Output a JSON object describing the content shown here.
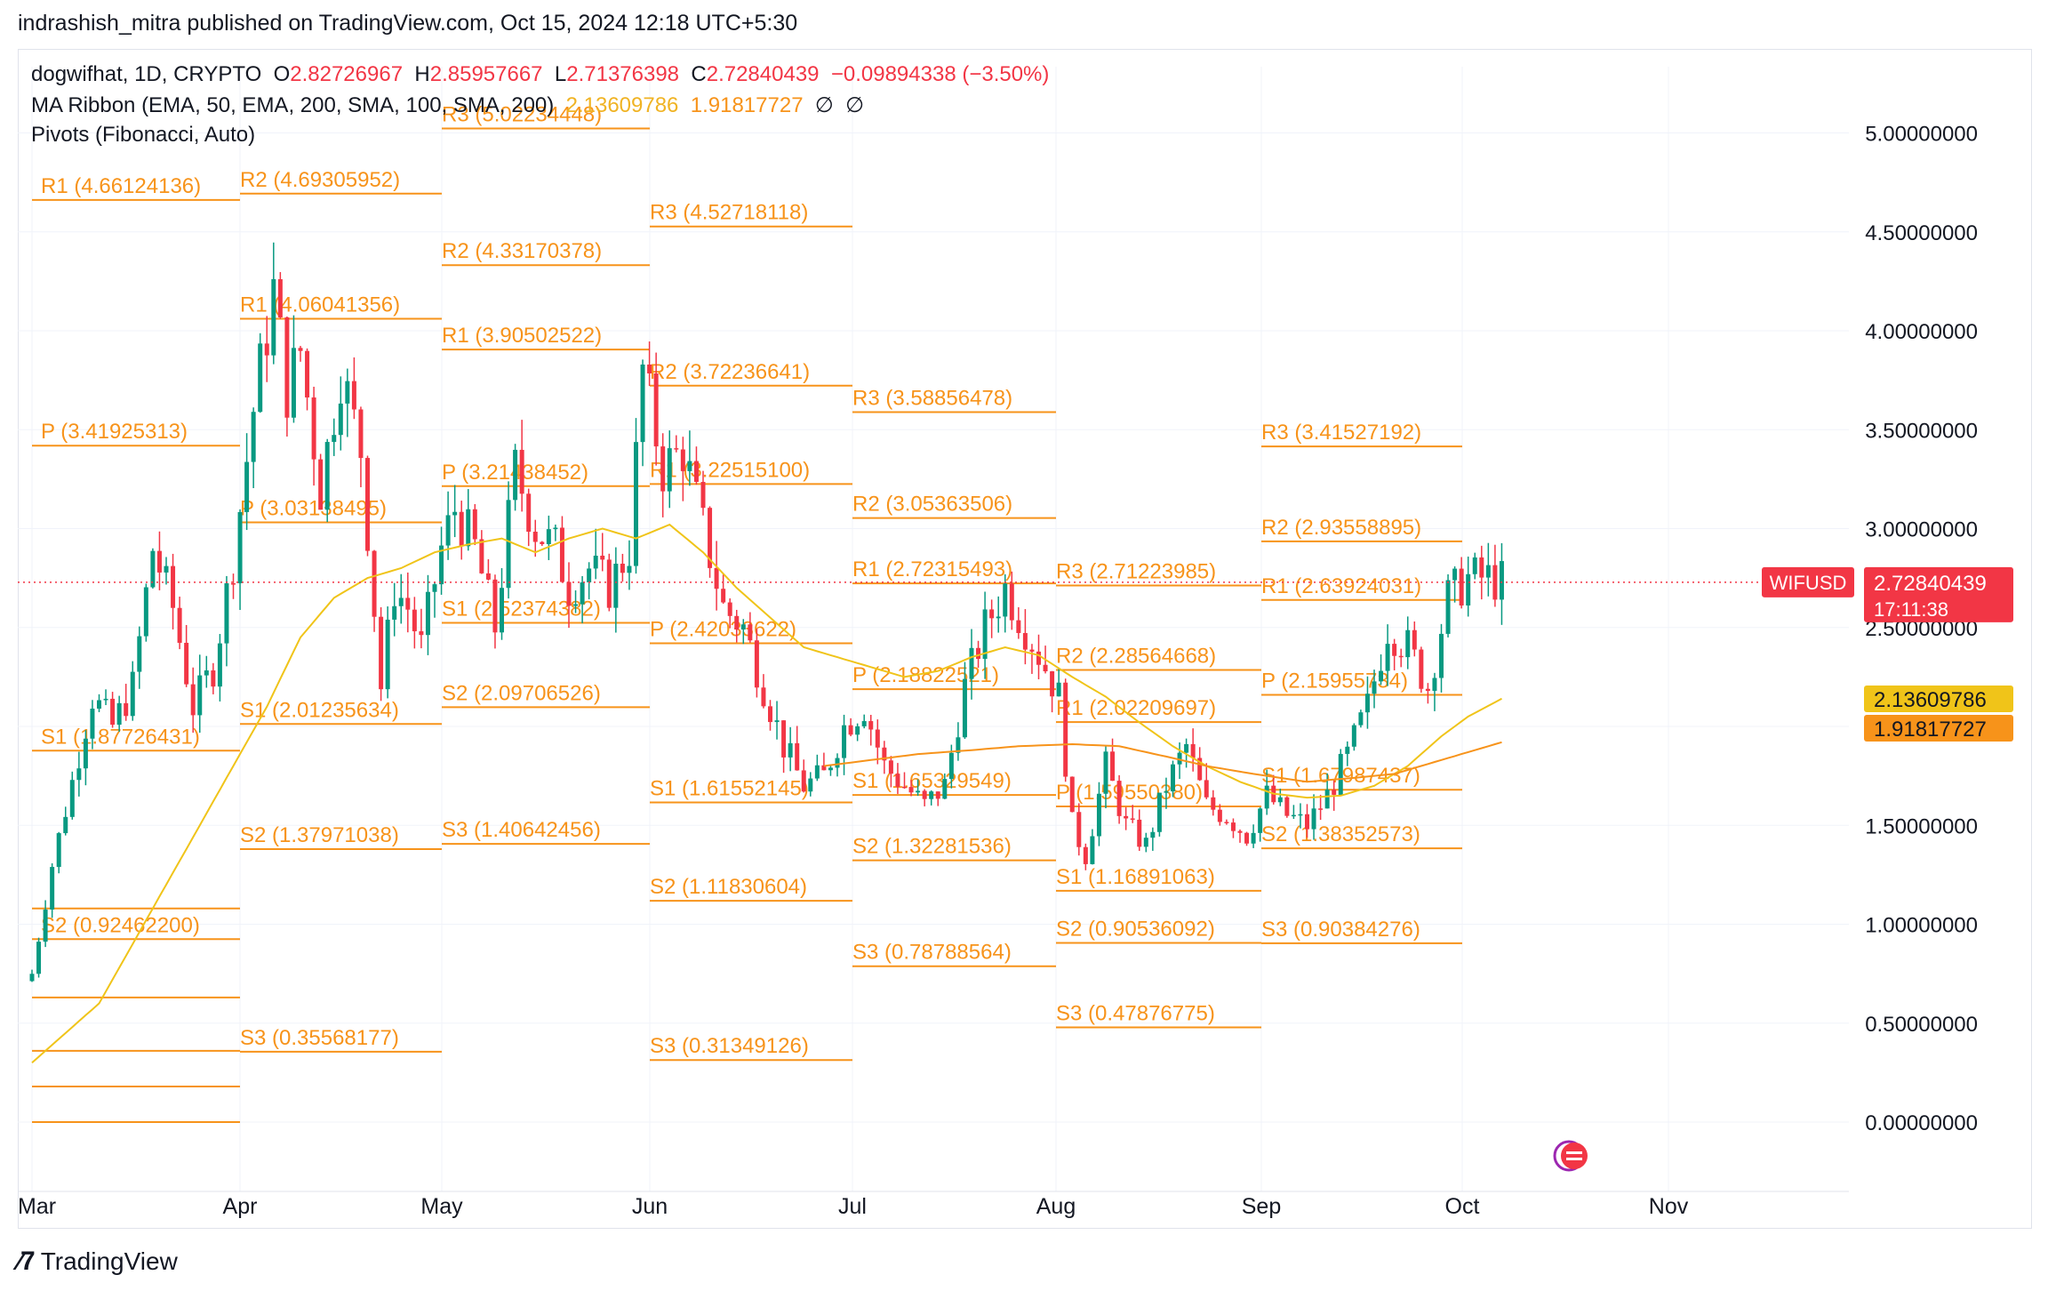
{
  "header": {
    "published": "indrashish_mitra published on TradingView.com, Oct 15, 2024 12:18 UTC+5:30"
  },
  "legend": {
    "symbol": "dogwifhat, 1D, CRYPTO",
    "o_label": "O",
    "o": "2.82726967",
    "h_label": "H",
    "h": "2.85957667",
    "l_label": "L",
    "l": "2.71376398",
    "c_label": "C",
    "c": "2.72840439",
    "change": "−0.09894338 (−3.50%)",
    "ma_label": "MA Ribbon (EMA, 50, EMA, 200, SMA, 100, SMA, 200)",
    "ma_v1": "2.13609786",
    "ma_v2": "1.91817727",
    "ma_v3": "∅",
    "ma_v4": "∅",
    "pivots_label": "Pivots (Fibonacci, Auto)"
  },
  "footer": {
    "brand": "TradingView"
  },
  "colors": {
    "up": "#089981",
    "down": "#f23645",
    "pivot": "#f7931a",
    "ma50": "#f0c419",
    "ma200": "#f7931a",
    "grid": "#f0f3fa"
  },
  "chart_data": {
    "type": "candlestick",
    "ylim": [
      -0.2,
      5.25
    ],
    "y_ticks": [
      "5.00000000",
      "4.50000000",
      "4.00000000",
      "3.50000000",
      "3.00000000",
      "2.50000000",
      "2.00000000",
      "1.50000000",
      "1.00000000",
      "0.50000000",
      "0.00000000"
    ],
    "y_tick_values": [
      5,
      4.5,
      4,
      3.5,
      3,
      2.5,
      2,
      1.5,
      1,
      0.5,
      0
    ],
    "x_ticks": [
      "Mar",
      "Apr",
      "May",
      "Jun",
      "Jul",
      "Aug",
      "Sep",
      "Oct",
      "Nov"
    ],
    "last_price": {
      "symbol": "WIFUSD",
      "value": 2.72840439,
      "label": "2.72840439",
      "countdown": "17:11:38"
    },
    "ma_tags": [
      {
        "value": 2.13609786,
        "label": "2.13609786",
        "color": "#f0c419"
      },
      {
        "value": 1.91817727,
        "label": "1.91817727",
        "color": "#f7931a"
      }
    ],
    "pivot_periods": [
      {
        "month": 0,
        "levels": [
          {
            "name": "R1",
            "label": "R1 (4.66124136)",
            "value": 4.66124136
          },
          {
            "name": "P",
            "label": "P (3.41925313)",
            "value": 3.41925313
          },
          {
            "name": "S1",
            "label": "S1 (1.87726431)",
            "value": 1.87726431
          },
          {
            "name": "S2",
            "label": "S2 (0.92462200)",
            "value": 0.924622
          }
        ]
      },
      {
        "month": 1,
        "levels": [
          {
            "name": "R2",
            "label": "R2 (4.69305952)",
            "value": 4.69305952
          },
          {
            "name": "R1",
            "label": "R1 (4.06041356)",
            "value": 4.06041356
          },
          {
            "name": "P",
            "label": "P (3.03138495)",
            "value": 3.03138495
          },
          {
            "name": "S1",
            "label": "S1 (2.01235634)",
            "value": 2.01235634
          },
          {
            "name": "S2",
            "label": "S2 (1.37971038)",
            "value": 1.37971038
          },
          {
            "name": "S3",
            "label": "S3 (0.35568177)",
            "value": 0.35568177
          }
        ]
      },
      {
        "month": 2,
        "levels": [
          {
            "name": "R3",
            "label": "R3 (5.02234448)",
            "value": 5.02234448
          },
          {
            "name": "R2",
            "label": "R2 (4.33170378)",
            "value": 4.33170378
          },
          {
            "name": "R1",
            "label": "R1 (3.90502522)",
            "value": 3.90502522
          },
          {
            "name": "P",
            "label": "P (3.21438452)",
            "value": 3.21438452
          },
          {
            "name": "S1",
            "label": "S1 (2.52374382)",
            "value": 2.52374382
          },
          {
            "name": "S2",
            "label": "S2 (2.09706526)",
            "value": 2.09706526
          },
          {
            "name": "S3",
            "label": "S3 (1.40642456)",
            "value": 1.40642456
          }
        ]
      },
      {
        "month": 3,
        "levels": [
          {
            "name": "R3",
            "label": "R3 (4.52718118)",
            "value": 4.52718118
          },
          {
            "name": "R2",
            "label": "R2 (3.72236641)",
            "value": 3.72236641
          },
          {
            "name": "R1",
            "label": "R1 (3.22515100)",
            "value": 3.225151
          },
          {
            "name": "P",
            "label": "P (2.42033622)",
            "value": 2.42033622
          },
          {
            "name": "S1",
            "label": "S1 (1.61552145)",
            "value": 1.61552145
          },
          {
            "name": "S2",
            "label": "S2 (1.11830604)",
            "value": 1.11830604
          },
          {
            "name": "S3",
            "label": "S3 (0.31349126)",
            "value": 0.31349126
          }
        ]
      },
      {
        "month": 4,
        "levels": [
          {
            "name": "R3",
            "label": "R3 (3.58856478)",
            "value": 3.58856478
          },
          {
            "name": "R2",
            "label": "R2 (3.05363506)",
            "value": 3.05363506
          },
          {
            "name": "R1",
            "label": "R1 (2.72315493)",
            "value": 2.72315493
          },
          {
            "name": "P",
            "label": "P (2.18822521)",
            "value": 2.18822521
          },
          {
            "name": "S1",
            "label": "S1 (1.65329549)",
            "value": 1.65329549
          },
          {
            "name": "S2",
            "label": "S2 (1.32281536)",
            "value": 1.32281536
          },
          {
            "name": "S3",
            "label": "S3 (0.78788564)",
            "value": 0.78788564
          }
        ]
      },
      {
        "month": 5,
        "levels": [
          {
            "name": "R3",
            "label": "R3 (2.71223985)",
            "value": 2.71223985
          },
          {
            "name": "R2",
            "label": "R2 (2.28564668)",
            "value": 2.28564668
          },
          {
            "name": "R1",
            "label": "R1 (2.02209697)",
            "value": 2.02209697
          },
          {
            "name": "P",
            "label": "P (1.59550380)",
            "value": 1.5955038
          },
          {
            "name": "S1",
            "label": "S1 (1.16891063)",
            "value": 1.16891063
          },
          {
            "name": "S2",
            "label": "S2 (0.90536092)",
            "value": 0.90536092
          },
          {
            "name": "S3",
            "label": "S3 (0.47876775)",
            "value": 0.47876775
          }
        ]
      },
      {
        "month": 6,
        "levels": [
          {
            "name": "R3",
            "label": "R3 (3.41527192)",
            "value": 3.41527192
          },
          {
            "name": "R2",
            "label": "R2 (2.93558895)",
            "value": 2.93558895
          },
          {
            "name": "R1",
            "label": "R1 (2.63924031)",
            "value": 2.63924031
          },
          {
            "name": "P",
            "label": "P (2.15955734)",
            "value": 2.15955734
          },
          {
            "name": "S1",
            "label": "S1 (1.67987437)",
            "value": 1.67987437
          },
          {
            "name": "S2",
            "label": "S2 (1.38352573)",
            "value": 1.38352573
          },
          {
            "name": "S3",
            "label": "S3 (0.90384276)",
            "value": 0.90384276
          }
        ]
      }
    ],
    "extra_level_values_march": [
      1.08,
      0.63,
      0.36,
      0.18,
      0.0
    ],
    "close_anchors": [
      [
        0,
        0.75
      ],
      [
        3,
        1.3
      ],
      [
        6,
        1.72
      ],
      [
        9,
        2.15
      ],
      [
        12,
        2.0
      ],
      [
        15,
        2.2
      ],
      [
        18,
        2.9
      ],
      [
        21,
        2.6
      ],
      [
        24,
        2.1
      ],
      [
        27,
        2.3
      ],
      [
        30,
        2.85
      ],
      [
        33,
        3.6
      ],
      [
        36,
        4.2
      ],
      [
        38,
        3.7
      ],
      [
        40,
        3.9
      ],
      [
        43,
        3.2
      ],
      [
        46,
        3.8
      ],
      [
        49,
        3.4
      ],
      [
        52,
        2.2
      ],
      [
        54,
        2.7
      ],
      [
        56,
        2.6
      ],
      [
        58,
        2.4
      ],
      [
        61,
        2.9
      ],
      [
        63,
        3.1
      ],
      [
        66,
        2.9
      ],
      [
        69,
        2.5
      ],
      [
        72,
        3.3
      ],
      [
        75,
        3.0
      ],
      [
        78,
        2.9
      ],
      [
        80,
        2.7
      ],
      [
        83,
        2.8
      ],
      [
        86,
        2.7
      ],
      [
        89,
        2.9
      ],
      [
        91,
        3.8
      ],
      [
        94,
        3.3
      ],
      [
        97,
        3.4
      ],
      [
        100,
        3.0
      ],
      [
        103,
        2.6
      ],
      [
        106,
        2.5
      ],
      [
        109,
        2.2
      ],
      [
        112,
        1.9
      ],
      [
        115,
        1.7
      ],
      [
        118,
        1.75
      ],
      [
        121,
        2.0
      ],
      [
        124,
        2.1
      ],
      [
        127,
        1.8
      ],
      [
        130,
        1.7
      ],
      [
        133,
        1.6
      ],
      [
        136,
        1.7
      ],
      [
        139,
        2.2
      ],
      [
        142,
        2.5
      ],
      [
        145,
        2.7
      ],
      [
        148,
        2.5
      ],
      [
        151,
        2.3
      ],
      [
        153,
        2.15
      ],
      [
        155,
        1.5
      ],
      [
        157,
        1.35
      ],
      [
        160,
        1.8
      ],
      [
        163,
        1.5
      ],
      [
        166,
        1.4
      ],
      [
        169,
        1.7
      ],
      [
        172,
        1.9
      ],
      [
        175,
        1.6
      ],
      [
        178,
        1.55
      ],
      [
        181,
        1.45
      ],
      [
        184,
        1.65
      ],
      [
        187,
        1.55
      ],
      [
        190,
        1.5
      ],
      [
        193,
        1.65
      ],
      [
        196,
        1.85
      ],
      [
        199,
        2.1
      ],
      [
        202,
        2.5
      ],
      [
        205,
        2.4
      ],
      [
        208,
        2.2
      ],
      [
        211,
        2.65
      ],
      [
        214,
        2.75
      ],
      [
        217,
        2.75
      ],
      [
        219,
        2.73
      ]
    ],
    "ma50_anchors": [
      [
        0,
        0.3
      ],
      [
        10,
        0.6
      ],
      [
        20,
        1.2
      ],
      [
        30,
        1.8
      ],
      [
        35,
        2.1
      ],
      [
        40,
        2.45
      ],
      [
        45,
        2.65
      ],
      [
        50,
        2.75
      ],
      [
        55,
        2.8
      ],
      [
        60,
        2.88
      ],
      [
        65,
        2.92
      ],
      [
        70,
        2.95
      ],
      [
        75,
        2.88
      ],
      [
        80,
        2.95
      ],
      [
        85,
        3.0
      ],
      [
        90,
        2.95
      ],
      [
        95,
        3.02
      ],
      [
        100,
        2.88
      ],
      [
        105,
        2.7
      ],
      [
        110,
        2.55
      ],
      [
        115,
        2.4
      ],
      [
        120,
        2.35
      ],
      [
        125,
        2.3
      ],
      [
        130,
        2.25
      ],
      [
        135,
        2.28
      ],
      [
        140,
        2.35
      ],
      [
        145,
        2.4
      ],
      [
        150,
        2.36
      ],
      [
        155,
        2.25
      ],
      [
        160,
        2.15
      ],
      [
        165,
        2.02
      ],
      [
        170,
        1.9
      ],
      [
        175,
        1.8
      ],
      [
        180,
        1.72
      ],
      [
        185,
        1.66
      ],
      [
        190,
        1.64
      ],
      [
        195,
        1.65
      ],
      [
        200,
        1.7
      ],
      [
        205,
        1.8
      ],
      [
        210,
        1.95
      ],
      [
        214,
        2.05
      ],
      [
        219,
        2.14
      ]
    ],
    "ma200_anchors": [
      [
        118,
        1.8
      ],
      [
        125,
        1.83
      ],
      [
        132,
        1.86
      ],
      [
        140,
        1.88
      ],
      [
        147,
        1.9
      ],
      [
        155,
        1.91
      ],
      [
        162,
        1.9
      ],
      [
        170,
        1.84
      ],
      [
        175,
        1.8
      ],
      [
        182,
        1.76
      ],
      [
        190,
        1.72
      ],
      [
        197,
        1.74
      ],
      [
        203,
        1.76
      ],
      [
        209,
        1.82
      ],
      [
        214,
        1.87
      ],
      [
        219,
        1.92
      ]
    ]
  }
}
